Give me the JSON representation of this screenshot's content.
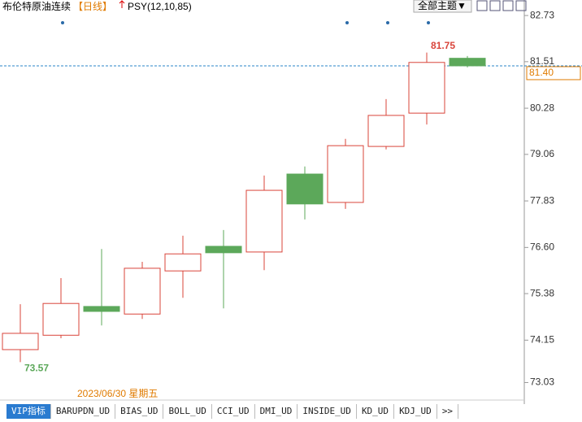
{
  "chart_data": {
    "type": "candlestick",
    "title": "布伦特原油连续",
    "period": "【日线】",
    "indicator": "PSY(12,10,85)",
    "theme_button": "全部主题▼",
    "categories": [
      null,
      null,
      null,
      null,
      null,
      null,
      null,
      null,
      null,
      null,
      null,
      null
    ],
    "open": [
      73.9,
      74.28,
      75.04,
      74.84,
      75.98,
      76.63,
      76.48,
      78.54,
      77.79,
      79.27,
      80.15,
      81.6
    ],
    "high": [
      75.1,
      75.79,
      76.56,
      76.22,
      76.91,
      77.06,
      78.5,
      78.74,
      79.47,
      80.52,
      81.75,
      81.66
    ],
    "low": [
      73.57,
      74.2,
      74.54,
      74.71,
      75.27,
      74.99,
      76.0,
      77.34,
      77.62,
      79.19,
      79.85,
      81.36
    ],
    "close": [
      74.33,
      75.12,
      74.91,
      76.05,
      76.43,
      76.46,
      78.11,
      77.75,
      79.29,
      80.09,
      81.49,
      81.4
    ],
    "up_color": "#d9443a",
    "down_color": "#5ca85a",
    "ylim": [
      72.61,
      83.14
    ],
    "yticks": [
      82.73,
      81.51,
      80.28,
      79.06,
      77.83,
      {
        "value": 76.6,
        "label": "76.60"
      },
      75.38,
      74.15,
      73.03
    ],
    "last_price": 81.4,
    "last_price_label": "81.40",
    "x_label": "2023/06/30 星期五",
    "tabs": [
      "VIP指标",
      "BARUPDN_UD",
      "BIAS_UD",
      "BOLL_UD",
      "CCI_UD",
      "DMI_UD",
      "INSIDE_UD",
      "KD_UD",
      "KDJ_UD",
      ">>"
    ]
  }
}
